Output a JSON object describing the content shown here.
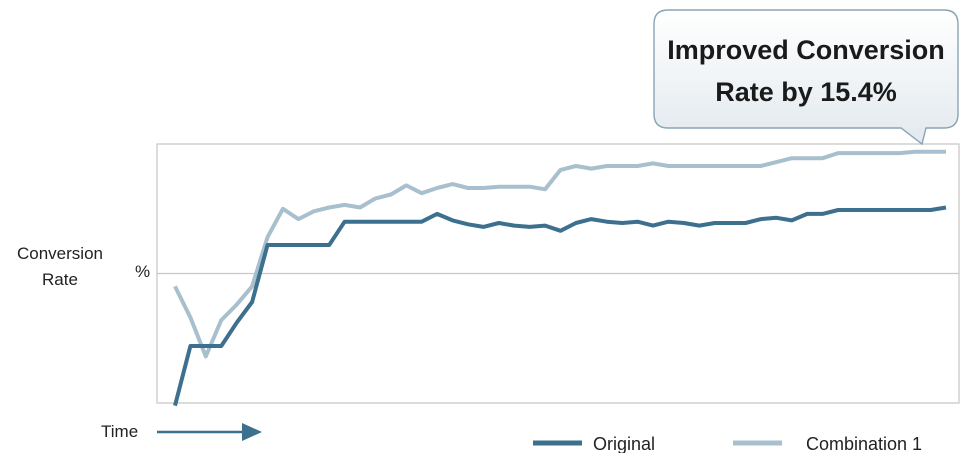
{
  "chart_data": {
    "type": "line",
    "ylabel": "Conversion Rate",
    "y_unit": "%",
    "xlabel": "Time",
    "ylim": [
      0,
      100
    ],
    "x": [
      0,
      1,
      2,
      3,
      4,
      5,
      6,
      7,
      8,
      9,
      10,
      11,
      12,
      13,
      14,
      15,
      16,
      17,
      18,
      19,
      20,
      21,
      22,
      23,
      24,
      25,
      26,
      27,
      28,
      29,
      30,
      31,
      32,
      33,
      34,
      35,
      36,
      37,
      38,
      39,
      40,
      41,
      42,
      43,
      44,
      45,
      46,
      47,
      48,
      49,
      50
    ],
    "series": [
      {
        "name": "Original",
        "color": "#3d6f8e",
        "values": [
          -1,
          22,
          22,
          22,
          31,
          39,
          61,
          61,
          61,
          61,
          61,
          70,
          70,
          70,
          70,
          70,
          70,
          73,
          70.5,
          69,
          68,
          69.5,
          68.5,
          68,
          68.5,
          66.5,
          69.5,
          71,
          70,
          69.5,
          70,
          68.5,
          70,
          69.5,
          68.5,
          69.5,
          69.5,
          69.5,
          71,
          71.5,
          70.5,
          73,
          73,
          74.5,
          74.5,
          74.5,
          74.5,
          74.5,
          74.5,
          74.5,
          75.5
        ]
      },
      {
        "name": "Combination 1",
        "color": "#a8bfcd",
        "values": [
          45,
          33,
          18,
          32,
          38,
          45,
          64,
          75,
          71,
          74,
          75.5,
          76.5,
          75.5,
          79,
          80.5,
          84,
          81,
          83,
          84.5,
          83,
          83,
          83.5,
          83.5,
          83.5,
          82.5,
          90,
          91.5,
          90.5,
          91.5,
          91.5,
          91.5,
          92.5,
          91.5,
          91.5,
          91.5,
          91.5,
          91.5,
          91.5,
          91.5,
          93,
          94.5,
          94.5,
          94.5,
          96.5,
          96.5,
          96.5,
          96.5,
          96.5,
          97,
          97,
          97
        ]
      }
    ],
    "grid": true,
    "legend": "bottom-right",
    "annotation": "Improved Conversion Rate by 15.4%"
  }
}
